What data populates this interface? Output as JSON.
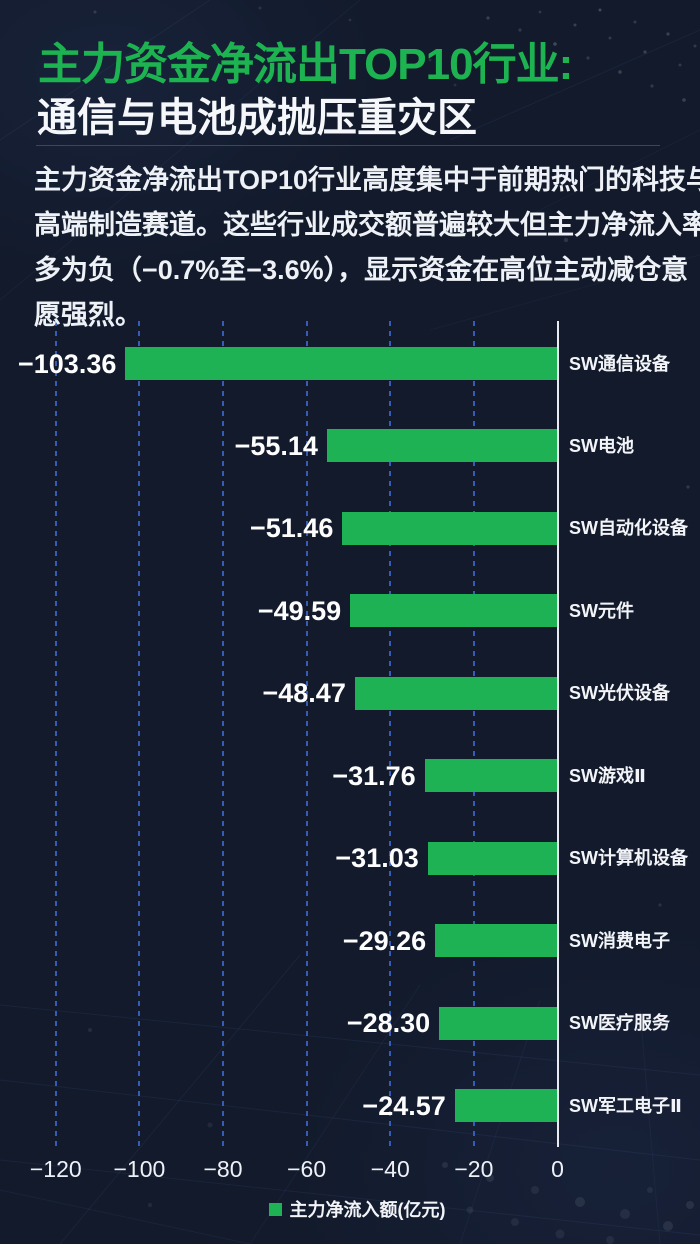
{
  "header": {
    "title": "主力资金净流出TOP10行业:",
    "subtitle": "通信与电池成抛压重灾区",
    "paragraph_lines": [
      "主力资金净流出TOP10行业高度集中于前期热门的科技与",
      "高端制造赛道。这些行业成交额普遍较大但主力净流入率",
      "多为负（−0.7%至−3.6%），显示资金在高位主动减仓意",
      "愿强烈。"
    ]
  },
  "chart_data": {
    "type": "bar",
    "orientation": "horizontal",
    "categories": [
      "SW通信设备",
      "SW电池",
      "SW自动化设备",
      "SW元件",
      "SW光伏设备",
      "SW游戏Ⅱ",
      "SW计算机设备",
      "SW消费电子",
      "SW医疗服务",
      "SW军工电子Ⅱ"
    ],
    "values": [
      -103.36,
      -55.14,
      -51.46,
      -49.59,
      -48.47,
      -31.76,
      -31.03,
      -29.26,
      -28.3,
      -24.57
    ],
    "value_labels": [
      "−103.36",
      "−55.14",
      "−51.46",
      "−49.59",
      "−48.47",
      "−31.76",
      "−31.03",
      "−29.26",
      "−28.30",
      "−24.57"
    ],
    "ticks": [
      -120,
      -100,
      -80,
      -60,
      -40,
      -20,
      0
    ],
    "tick_labels": [
      "−120",
      "−100",
      "−80",
      "−60",
      "−40",
      "−20",
      "0"
    ],
    "xlim": [
      -125,
      0
    ],
    "grid": "dashed-vertical",
    "legend": "主力净流入额(亿元)",
    "legend_position": "bottom-center",
    "bar_color": "#1eb254",
    "series_name": "主力净流入额(亿元)"
  },
  "colors": {
    "background": "#121a2b",
    "accent_green": "#1db351",
    "grid_blue": "#3a67d6",
    "axis_line": "#e7eaf1",
    "divider_blue": "#2d4b96",
    "text_white": "#f2f4f8"
  }
}
